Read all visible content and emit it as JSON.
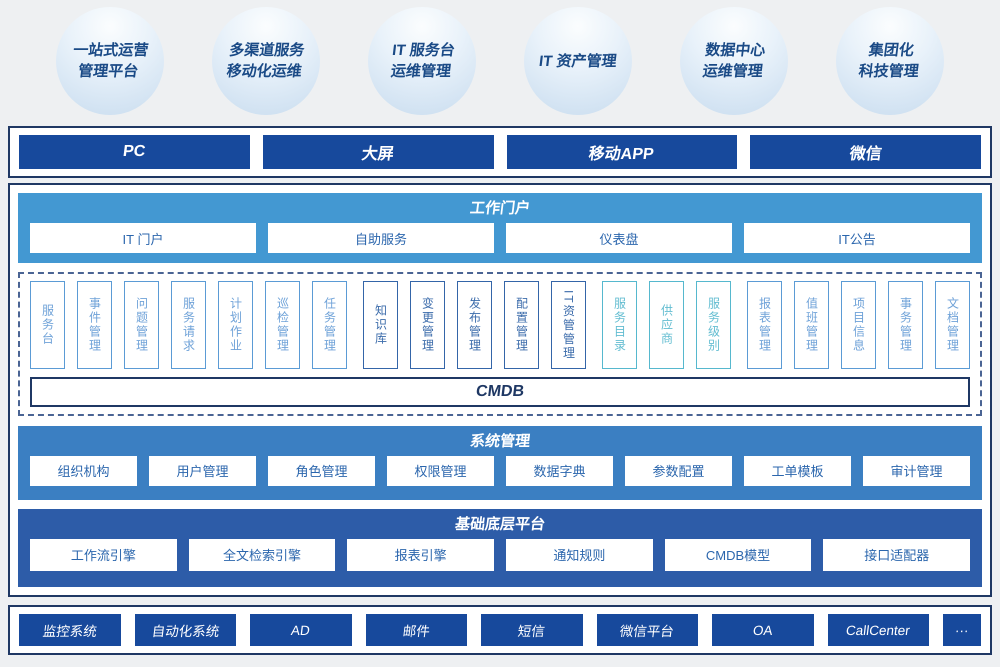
{
  "colors": {
    "page_bg": "#eef0f2",
    "navy_button": "#17499c",
    "container_border": "#1f3864",
    "portal_panel": "#4398d2",
    "system_panel": "#3b7fc2",
    "platform_panel": "#2d5ca8",
    "bubble_text": "#1a4a86",
    "module_light_blue": "#5b9bd5",
    "module_dark_blue": "#3465a8",
    "module_teal": "#56b8ce"
  },
  "bubbles": [
    {
      "label": "一站式运营\n管理平台"
    },
    {
      "label": "多渠道服务\n移动化运维"
    },
    {
      "label": "IT 服务台\n运维管理"
    },
    {
      "label": "IT 资产管理"
    },
    {
      "label": "数据中心\n运维管理"
    },
    {
      "label": "集团化\n科技管理"
    }
  ],
  "channels": [
    "PC",
    "大屏",
    "移动APP",
    "微信"
  ],
  "portal": {
    "title": "工作门户",
    "items": [
      "IT 门户",
      "自助服务",
      "仪表盘",
      "IT公告"
    ]
  },
  "modules": {
    "group_light": [
      "服务台",
      "事件管理",
      "问题管理",
      "服务请求",
      "计划作业",
      "巡检管理",
      "任务管理"
    ],
    "group_dark": [
      "知识库",
      "变更管理",
      "发布管理",
      "配置管理",
      "IT资管管理"
    ],
    "group_teal": [
      "服务目录",
      "供应商",
      "服务级别"
    ],
    "group_right": [
      "报表管理",
      "值班管理",
      "项目信息",
      "事务管理",
      "文档管理"
    ],
    "cmdb": "CMDB"
  },
  "system": {
    "title": "系统管理",
    "items": [
      "组织机构",
      "用户管理",
      "角色管理",
      "权限管理",
      "数据字典",
      "参数配置",
      "工单模板",
      "审计管理"
    ]
  },
  "platform": {
    "title": "基础底层平台",
    "items": [
      "工作流引擎",
      "全文检索引擎",
      "报表引擎",
      "通知规则",
      "CMDB模型",
      "接口适配器"
    ]
  },
  "integrations": [
    "监控系统",
    "自动化系统",
    "AD",
    "邮件",
    "短信",
    "微信平台",
    "OA",
    "CallCenter",
    "···"
  ]
}
